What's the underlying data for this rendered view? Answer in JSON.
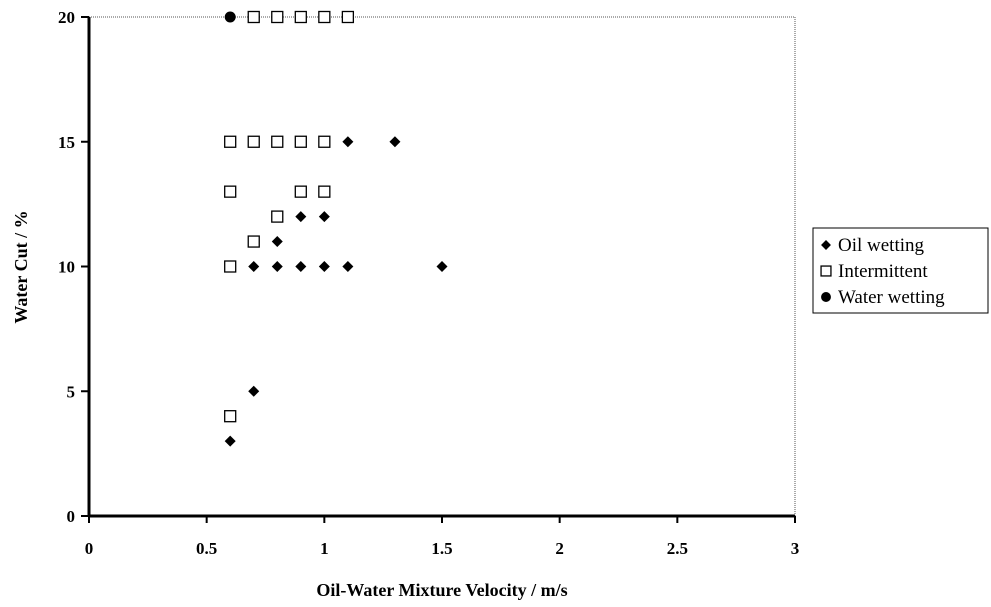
{
  "chart_data": {
    "type": "scatter",
    "xlabel": "Oil-Water Mixture Velocity  /  m/s",
    "ylabel": "Water Cut  /  %",
    "xlim": [
      0,
      3
    ],
    "ylim": [
      0,
      20
    ],
    "x_ticks": [
      "0",
      "0.5",
      "1",
      "1.5",
      "2",
      "2.5",
      "3"
    ],
    "x_tick_values": [
      0,
      0.5,
      1,
      1.5,
      2,
      2.5,
      3
    ],
    "y_ticks": [
      "0",
      "5",
      "10",
      "15",
      "20"
    ],
    "y_tick_values": [
      0,
      5,
      10,
      15,
      20
    ],
    "grid": false,
    "legend_position": "right",
    "series": [
      {
        "name": "Oil wetting",
        "marker": "diamond",
        "color": "#000000",
        "points": [
          [
            0.6,
            3
          ],
          [
            0.7,
            5
          ],
          [
            0.7,
            10
          ],
          [
            0.8,
            10
          ],
          [
            0.9,
            10
          ],
          [
            1.0,
            10
          ],
          [
            1.1,
            10
          ],
          [
            1.5,
            10
          ],
          [
            0.8,
            11
          ],
          [
            0.9,
            12
          ],
          [
            1.0,
            12
          ],
          [
            1.1,
            15
          ],
          [
            1.3,
            15
          ]
        ]
      },
      {
        "name": "Intermittent",
        "marker": "square-open",
        "color": "#000000",
        "points": [
          [
            0.6,
            4
          ],
          [
            0.6,
            10
          ],
          [
            0.7,
            11
          ],
          [
            0.8,
            12
          ],
          [
            0.6,
            13
          ],
          [
            0.9,
            13
          ],
          [
            1.0,
            13
          ],
          [
            0.6,
            15
          ],
          [
            0.7,
            15
          ],
          [
            0.8,
            15
          ],
          [
            0.9,
            15
          ],
          [
            1.0,
            15
          ],
          [
            0.7,
            20
          ],
          [
            0.8,
            20
          ],
          [
            0.9,
            20
          ],
          [
            1.0,
            20
          ],
          [
            1.1,
            20
          ]
        ]
      },
      {
        "name": "Water wetting",
        "marker": "circle",
        "color": "#000000",
        "points": [
          [
            0.6,
            20
          ]
        ]
      }
    ]
  }
}
